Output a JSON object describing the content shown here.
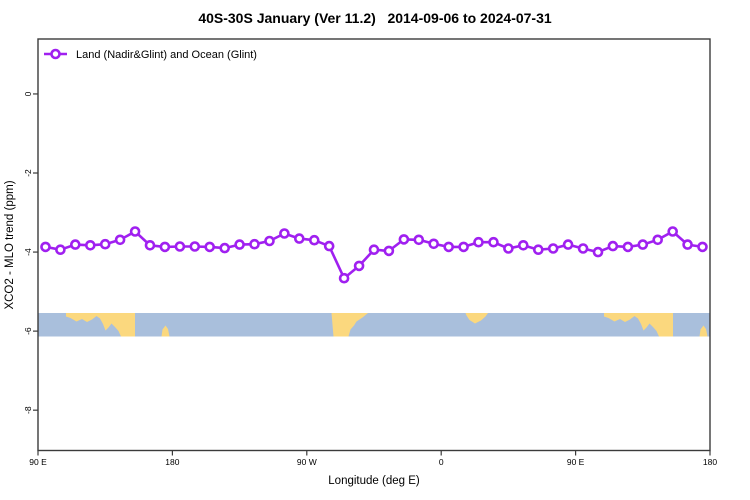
{
  "title": "40S-30S January (Ver 11.2)   2014-09-06 to 2024-07-31",
  "legend": {
    "label": "Land (Nadir&Glint) and Ocean (Glint)"
  },
  "chart_data": {
    "type": "line",
    "title": "40S-30S January (Ver 11.2)   2014-09-06 to 2024-07-31",
    "xlabel": "Longitude (deg E)",
    "ylabel": "XCO2 - MLO trend (ppm)",
    "xlim": [
      90,
      540
    ],
    "ylim": [
      -9.02,
      1.39
    ],
    "grid": false,
    "legend_position": "top-left-inside",
    "x_ticks": [
      {
        "lon": 90,
        "label": "90 E"
      },
      {
        "lon": 180,
        "label": "180"
      },
      {
        "lon": 270,
        "label": "90 W"
      },
      {
        "lon": 360,
        "label": "0"
      },
      {
        "lon": 450,
        "label": "90 E"
      },
      {
        "lon": 540,
        "label": "180"
      }
    ],
    "y_ticks": [
      {
        "value": 0,
        "label": "0"
      },
      {
        "value": -2,
        "label": "-2"
      },
      {
        "value": -4,
        "label": "-4"
      },
      {
        "value": -6,
        "label": "-6"
      },
      {
        "value": -8,
        "label": "-8"
      }
    ],
    "series": [
      {
        "name": "Land (Nadir&Glint) and Ocean (Glint)",
        "color": "#A020F0",
        "marker": "open-circle",
        "x": [
          95,
          105,
          115,
          125,
          135,
          145,
          155,
          165,
          175,
          185,
          195,
          205,
          215,
          225,
          235,
          245,
          255,
          265,
          275,
          285,
          295,
          305,
          315,
          325,
          335,
          345,
          355,
          365,
          375,
          385,
          395,
          405,
          415,
          425,
          435,
          445,
          455,
          465,
          475,
          485,
          495,
          505,
          515,
          525,
          535
        ],
        "values": [
          -3.87,
          -3.94,
          -3.81,
          -3.83,
          -3.8,
          -3.69,
          -3.48,
          -3.83,
          -3.87,
          -3.86,
          -3.86,
          -3.87,
          -3.9,
          -3.81,
          -3.8,
          -3.72,
          -3.53,
          -3.66,
          -3.7,
          -3.85,
          -4.66,
          -4.35,
          -3.94,
          -3.97,
          -3.68,
          -3.69,
          -3.79,
          -3.87,
          -3.87,
          -3.75,
          -3.75,
          -3.91,
          -3.83,
          -3.94,
          -3.91,
          -3.81,
          -3.91,
          -4.0,
          -3.85,
          -3.87,
          -3.81,
          -3.69,
          -3.48,
          -3.81,
          -3.87
        ]
      }
    ],
    "map_band": {
      "description": "40S-30S latitude world coastline strip",
      "lands": [
        "Australia",
        "New Zealand",
        "South America",
        "South Africa",
        "Australia (wrap)",
        "New Zealand (wrap)"
      ],
      "ocean_color": "#A9BFDC",
      "land_color": "#FBD87E",
      "band_y_ppm": [
        -6.1,
        -5.55
      ]
    }
  }
}
